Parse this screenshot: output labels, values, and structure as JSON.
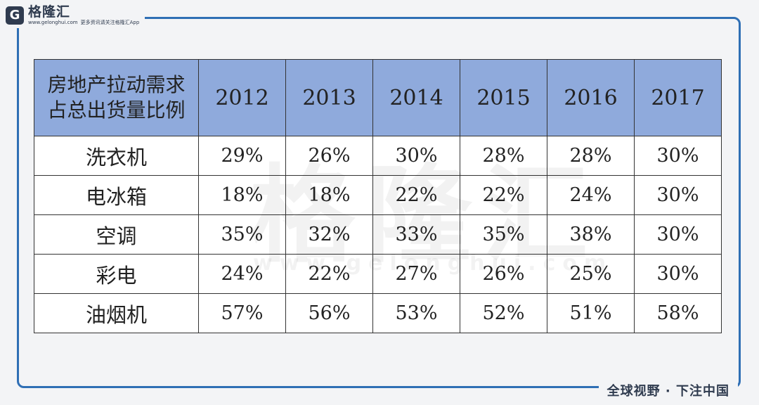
{
  "brand": {
    "name": "格隆汇",
    "url": "www.gelonghui.com",
    "tagline": "更多资讯请关注格隆汇App",
    "footer": "全球视野 · 下注中国"
  },
  "watermark": {
    "text": "格隆汇",
    "url": "www.gelonghui.com"
  },
  "table": {
    "corner_lines": [
      "房地产拉动需求",
      "占总出货量比例"
    ],
    "years": [
      "2012",
      "2013",
      "2014",
      "2015",
      "2016",
      "2017"
    ],
    "rows": [
      {
        "label": "洗衣机",
        "values": [
          "29%",
          "26%",
          "30%",
          "28%",
          "28%",
          "30%"
        ]
      },
      {
        "label": "电冰箱",
        "values": [
          "18%",
          "18%",
          "22%",
          "22%",
          "24%",
          "30%"
        ]
      },
      {
        "label": "空调",
        "values": [
          "35%",
          "32%",
          "33%",
          "35%",
          "38%",
          "30%"
        ]
      },
      {
        "label": "彩电",
        "values": [
          "24%",
          "22%",
          "27%",
          "26%",
          "25%",
          "30%"
        ]
      },
      {
        "label": "油烟机",
        "values": [
          "57%",
          "56%",
          "53%",
          "52%",
          "51%",
          "58%"
        ]
      }
    ]
  },
  "colors": {
    "frame": "#2f6fb5",
    "header_fill": "#8faadc",
    "background": "#f3f4f6",
    "text": "#222222"
  }
}
